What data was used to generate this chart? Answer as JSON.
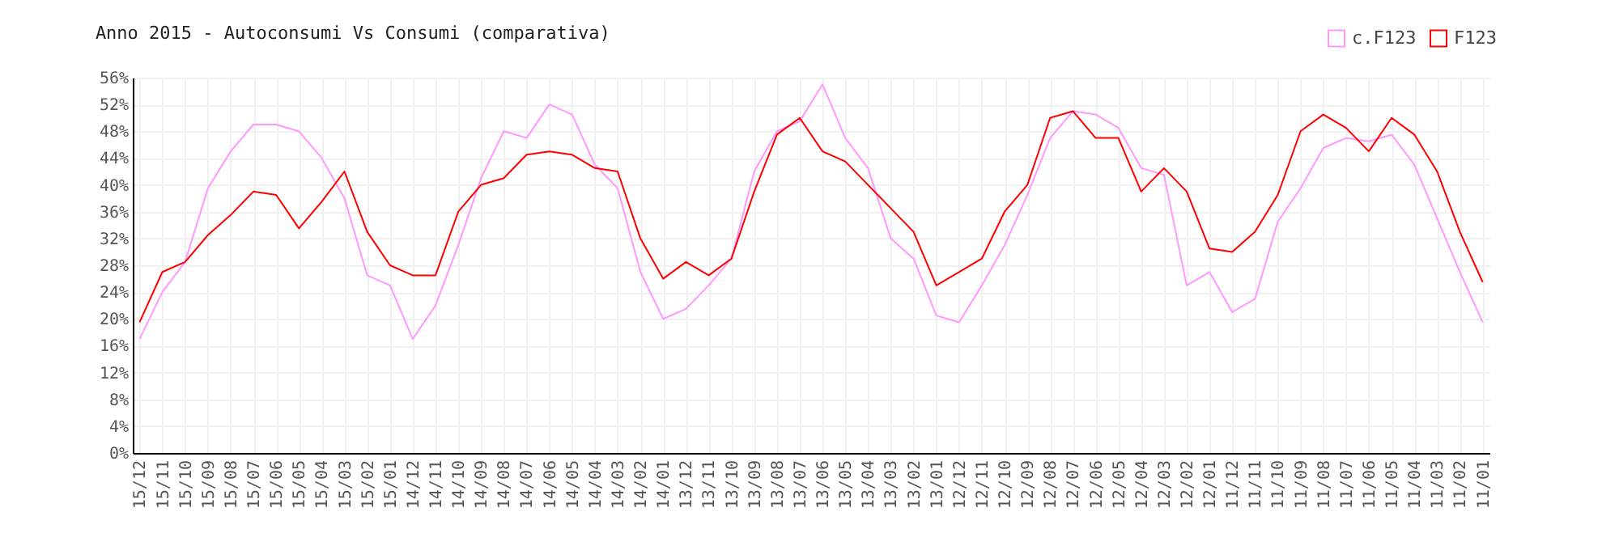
{
  "chart_data": {
    "type": "line",
    "title": "Anno 2015 - Autoconsumi Vs Consumi (comparativa)",
    "categories": [
      "15/12",
      "15/11",
      "15/10",
      "15/09",
      "15/08",
      "15/07",
      "15/06",
      "15/05",
      "15/04",
      "15/03",
      "15/02",
      "15/01",
      "14/12",
      "14/11",
      "14/10",
      "14/09",
      "14/08",
      "14/07",
      "14/06",
      "14/05",
      "14/04",
      "14/03",
      "14/02",
      "14/01",
      "13/12",
      "13/11",
      "13/10",
      "13/09",
      "13/08",
      "13/07",
      "13/06",
      "13/05",
      "13/04",
      "13/03",
      "13/02",
      "13/01",
      "12/12",
      "12/11",
      "12/10",
      "12/09",
      "12/08",
      "12/07",
      "12/06",
      "12/05",
      "12/04",
      "12/03",
      "12/02",
      "12/01",
      "11/12",
      "11/11",
      "11/10",
      "11/09",
      "11/08",
      "11/07",
      "11/06",
      "11/05",
      "11/04",
      "11/03",
      "11/02",
      "11/01"
    ],
    "series": [
      {
        "name": "c.F123",
        "color": "#ff99ff",
        "values": [
          17,
          24,
          28.5,
          39.5,
          45,
          49,
          49,
          48,
          44,
          38,
          26.5,
          25,
          17,
          22,
          31,
          41,
          48,
          47,
          52,
          50.5,
          43,
          39.5,
          27,
          20,
          21.5,
          25,
          29,
          42,
          48,
          49.5,
          55,
          47,
          42.5,
          32,
          29,
          20.5,
          19.5,
          25,
          31,
          38.5,
          47,
          51,
          50.5,
          48.5,
          42.5,
          41.5,
          25,
          27,
          21,
          23,
          34.5,
          39.5,
          45.5,
          47,
          46.5,
          47.5,
          43,
          35,
          27,
          19.5
        ]
      },
      {
        "name": "F123",
        "color": "#ff0000",
        "values": [
          19.5,
          27,
          28.5,
          32.5,
          35.5,
          39,
          38.5,
          33.5,
          37.5,
          42,
          33,
          28,
          26.5,
          26.5,
          36,
          40,
          41,
          44.5,
          45,
          44.5,
          42.5,
          42,
          32,
          26,
          28.5,
          26.5,
          29,
          39,
          47.5,
          50,
          45,
          43.5,
          40,
          36.5,
          33,
          25,
          27,
          29,
          36,
          40,
          50,
          51,
          47,
          47,
          39,
          42.5,
          39,
          30.5,
          30,
          33,
          38.5,
          48,
          50.5,
          48.5,
          45,
          50,
          47.5,
          42,
          33,
          25.5
        ]
      }
    ],
    "ylim": [
      0,
      56
    ],
    "yticks": [
      {
        "value": 0,
        "label": "0%"
      },
      {
        "value": 4,
        "label": "4%"
      },
      {
        "value": 8,
        "label": "8%"
      },
      {
        "value": 12,
        "label": "12%"
      },
      {
        "value": 16,
        "label": "16%"
      },
      {
        "value": 20,
        "label": "20%"
      },
      {
        "value": 24,
        "label": "24%"
      },
      {
        "value": 28,
        "label": "28%"
      },
      {
        "value": 32,
        "label": "32%"
      },
      {
        "value": 36,
        "label": "36%"
      },
      {
        "value": 40,
        "label": "40%"
      },
      {
        "value": 44,
        "label": "44%"
      },
      {
        "value": 48,
        "label": "48%"
      },
      {
        "value": 52,
        "label": "52%"
      },
      {
        "value": 56,
        "label": "56%"
      }
    ],
    "grid": true,
    "legend": "top right",
    "marker": "none",
    "line_style": "solid"
  }
}
